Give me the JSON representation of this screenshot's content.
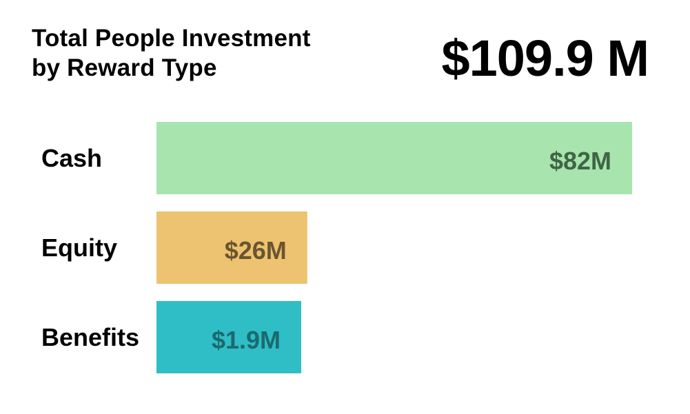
{
  "header": {
    "title_line1": "Total People Investment",
    "title_line2": "by Reward Type",
    "total": "$109.9 M"
  },
  "chart_data": {
    "type": "bar",
    "orientation": "horizontal",
    "title": "Total People Investment by Reward Type",
    "categories": [
      "Cash",
      "Equity",
      "Benefits"
    ],
    "values": [
      82,
      26,
      1.9
    ],
    "value_labels": [
      "$82M",
      "$26M",
      "$1.9M"
    ],
    "unit": "$M",
    "colors": [
      "#a8e4ae",
      "#edc372",
      "#30bec6"
    ],
    "label_colors": [
      "#3f6546",
      "#6a5530",
      "#1a6a6e"
    ],
    "grid": false,
    "axes_visible": false
  }
}
